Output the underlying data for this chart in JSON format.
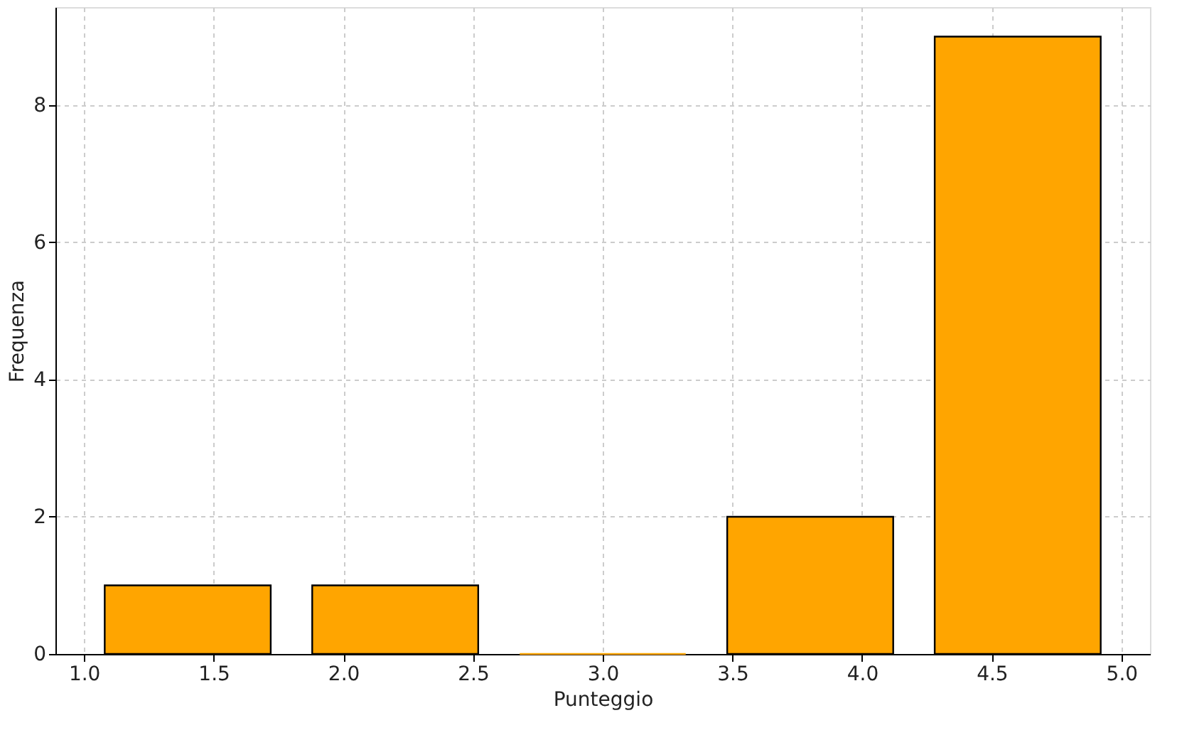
{
  "chart_data": {
    "type": "histogram",
    "xlabel": "Punteggio",
    "ylabel": "Frequenza",
    "bins": [
      1.0,
      1.8,
      2.6,
      3.4,
      4.2,
      5.0
    ],
    "values": [
      1,
      1,
      0,
      2,
      9
    ],
    "color": "#ffa500",
    "xlim": [
      0.89,
      5.11
    ],
    "ylim": [
      0,
      9.43
    ],
    "xticks": [
      {
        "value": 1.0,
        "label": "1.0"
      },
      {
        "value": 1.5,
        "label": "1.5"
      },
      {
        "value": 2.0,
        "label": "2.0"
      },
      {
        "value": 2.5,
        "label": "2.5"
      },
      {
        "value": 3.0,
        "label": "3.0"
      },
      {
        "value": 3.5,
        "label": "3.5"
      },
      {
        "value": 4.0,
        "label": "4.0"
      },
      {
        "value": 4.5,
        "label": "4.5"
      },
      {
        "value": 5.0,
        "label": "5.0"
      }
    ],
    "yticks": [
      0,
      2,
      4,
      6,
      8
    ],
    "grid": true
  }
}
